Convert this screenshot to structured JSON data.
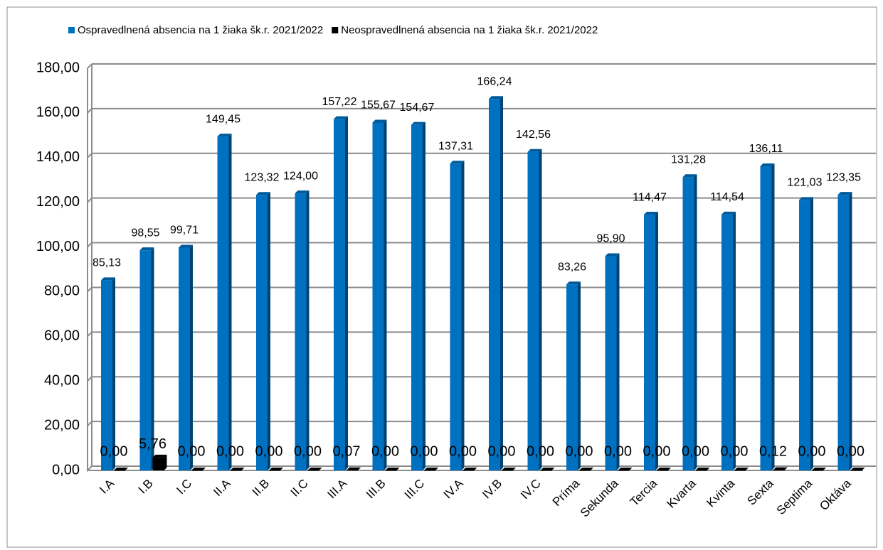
{
  "chart_data": {
    "type": "bar",
    "categories": [
      "I.A",
      "I.B",
      "I.C",
      "II.A",
      "II.B",
      "II.C",
      "III.A",
      "III.B",
      "III.C",
      "IV.A",
      "IV.B",
      "IV.C",
      "Príma",
      "Sekunda",
      "Tercia",
      "Kvarta",
      "Kvinta",
      "Sexta",
      "Septima",
      "Oktáva"
    ],
    "series": [
      {
        "name": "Ospravedlnená absencia na 1 žiaka  šk.r. 2021/2022",
        "color": "#0070c0",
        "values": [
          85.13,
          98.55,
          99.71,
          149.45,
          123.32,
          124.0,
          157.22,
          155.67,
          154.67,
          137.31,
          166.24,
          142.56,
          83.26,
          95.9,
          114.47,
          131.28,
          114.54,
          136.11,
          121.03,
          123.35
        ],
        "value_labels": [
          "85,13",
          "98,55",
          "99,71",
          "149,45",
          "123,32",
          "124,00",
          "157,22",
          "155,67",
          "154,67",
          "137,31",
          "166,24",
          "142,56",
          "83,26",
          "95,90",
          "114,47",
          "131,28",
          "114,54",
          "136,11",
          "121,03",
          "123,35"
        ]
      },
      {
        "name": "Neospravedlnená absencia na 1 žiaka  šk.r. 2021/2022",
        "color": "#000000",
        "values": [
          0,
          5.76,
          0,
          0,
          0,
          0,
          0.07,
          0,
          0,
          0,
          0,
          0,
          0,
          0,
          0,
          0,
          0,
          0.12,
          0,
          0
        ],
        "value_labels": [
          "0,00",
          "5,76",
          "0,00",
          "0,00",
          "0,00",
          "0,00",
          "0,07",
          "0,00",
          "0,00",
          "0,00",
          "0,00",
          "0,00",
          "0,00",
          "0,00",
          "0,00",
          "0,00",
          "0,00",
          "0,12",
          "0,00",
          "0,00"
        ]
      }
    ],
    "ylim": [
      0,
      180
    ],
    "yticks": [
      {
        "value": 0,
        "label": "0,00"
      },
      {
        "value": 20,
        "label": "20,00"
      },
      {
        "value": 40,
        "label": "40,00"
      },
      {
        "value": 60,
        "label": "60,00"
      },
      {
        "value": 80,
        "label": "80,00"
      },
      {
        "value": 100,
        "label": "100,00"
      },
      {
        "value": 120,
        "label": "120,00"
      },
      {
        "value": 140,
        "label": "140,00"
      },
      {
        "value": 160,
        "label": "160,00"
      },
      {
        "value": 180,
        "label": "180,00"
      }
    ],
    "grid": true,
    "legend": "top"
  }
}
